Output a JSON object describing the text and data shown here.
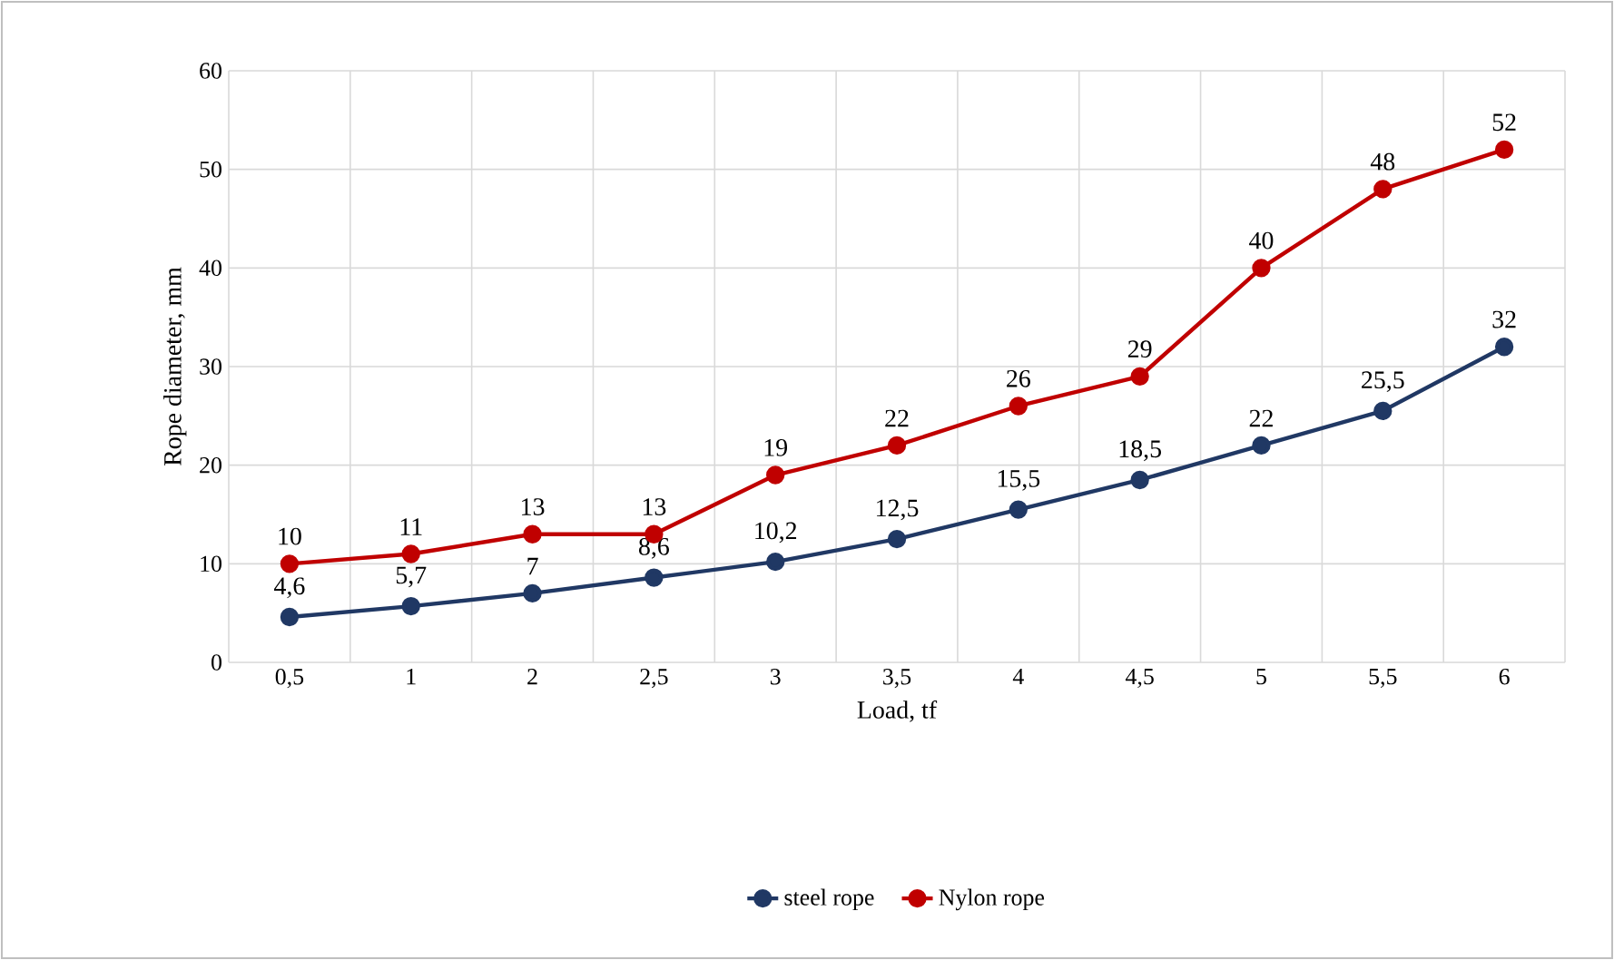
{
  "chart_data": {
    "type": "line",
    "xlabel": "Load, tf",
    "ylabel": "Rope diameter, mm",
    "categories": [
      "0,5",
      "1",
      "2",
      "2,5",
      "3",
      "3,5",
      "4",
      "4,5",
      "5",
      "5,5",
      "6"
    ],
    "series": [
      {
        "name": "steel rope",
        "color": "#203864",
        "values": [
          4.6,
          5.7,
          7,
          8.6,
          10.2,
          12.5,
          15.5,
          18.5,
          22,
          25.5,
          32
        ],
        "value_labels": [
          "4,6",
          "5,7",
          "7",
          "8,6",
          "10,2",
          "12,5",
          "15,5",
          "18,5",
          "22",
          "25,5",
          "32"
        ]
      },
      {
        "name": "Nylon rope",
        "color": "#c00000",
        "values": [
          10,
          11,
          13,
          13,
          19,
          22,
          26,
          29,
          40,
          48,
          52
        ],
        "value_labels": [
          "10",
          "11",
          "13",
          "13",
          "19",
          "22",
          "26",
          "29",
          "40",
          "48",
          "52"
        ]
      }
    ],
    "ylim": [
      0,
      60
    ],
    "yticks": [
      0,
      10,
      20,
      30,
      40,
      50,
      60
    ],
    "grid": true,
    "legend": "bottom",
    "marker": "circle",
    "line_style": "solid"
  }
}
